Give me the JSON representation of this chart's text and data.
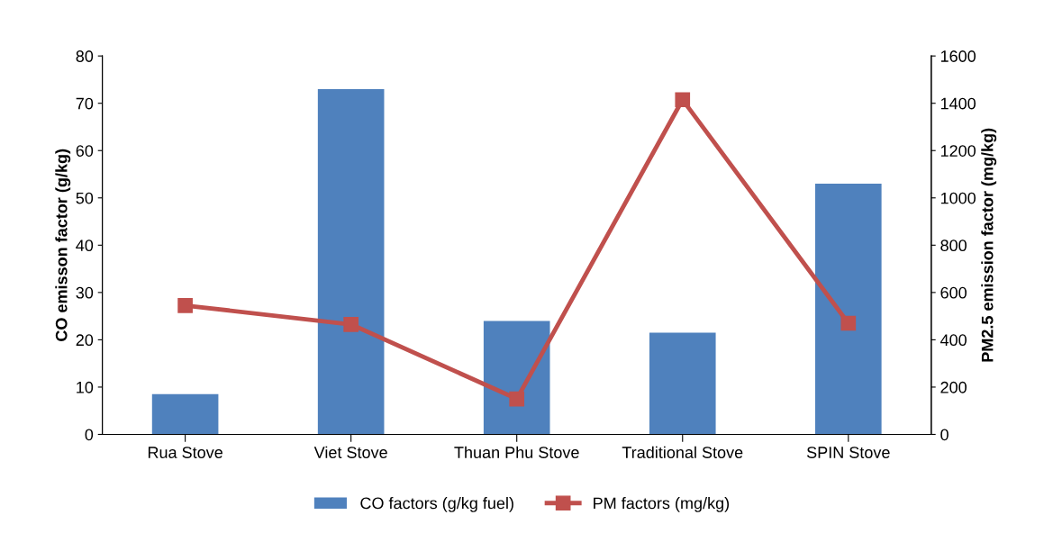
{
  "chart_data": {
    "type": "bar",
    "categories": [
      "Rua Stove",
      "Viet Stove",
      "Thuan Phu Stove",
      "Traditional Stove",
      "SPIN Stove"
    ],
    "ylabel": "CO emisson factor (g/kg)",
    "y2label": "PM2.5 emission factor (mg/kg)",
    "ylim": [
      0,
      80
    ],
    "yticks": [
      0,
      10,
      20,
      30,
      40,
      50,
      60,
      70,
      80
    ],
    "y2lim": [
      0,
      1600
    ],
    "y2ticks": [
      0,
      200,
      400,
      600,
      800,
      1000,
      1200,
      1400,
      1600
    ],
    "grid": false,
    "legend": "bottom",
    "series": [
      {
        "name": "CO factors (g/kg fuel)",
        "color": "#4f81bd",
        "values": [
          8.5,
          73,
          24,
          21.5,
          53
        ]
      },
      {
        "name": "PM factors (mg/kg)",
        "type": "line",
        "axis": "y2",
        "color": "#c0504d",
        "marker": "square",
        "values": [
          545,
          465,
          150,
          1415,
          470
        ]
      }
    ]
  }
}
